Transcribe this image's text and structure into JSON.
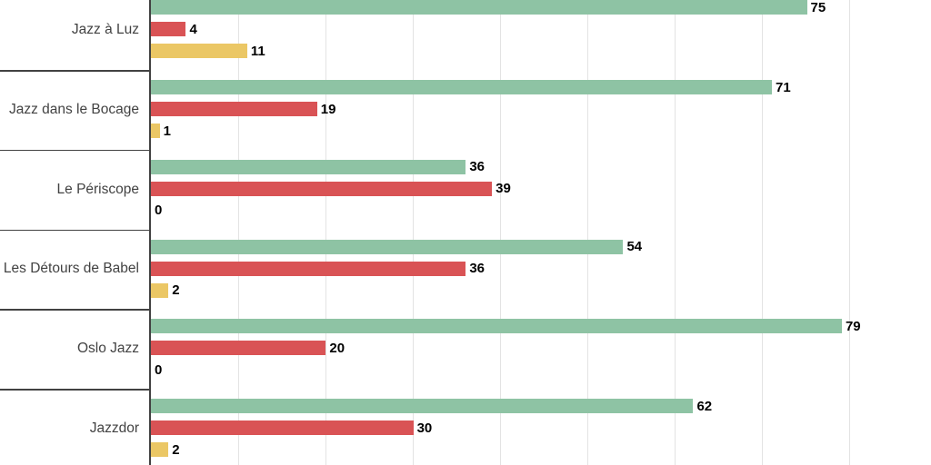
{
  "chart": {
    "background_color": "#ffffff",
    "axis_color": "#424242",
    "gridline_color": "#e3e3e3",
    "label_color": "#424242",
    "value_label_color": "#000000"
  },
  "chart_data": {
    "type": "bar",
    "orientation": "horizontal",
    "title": "",
    "xlabel": "",
    "ylabel": "",
    "grid": true,
    "gridline_interval": 10,
    "xlim_visible": [
      0,
      89
    ],
    "value_labels": true,
    "legend": "none (cropped out of view)",
    "categories": [
      "Jazz à Luz",
      "Jazz dans le Bocage",
      "Le Périscope",
      "Les Détours de Babel",
      "Oslo Jazz",
      "Jazzdor"
    ],
    "series": [
      {
        "name": "series-green",
        "color": "#8EC3A4",
        "values": [
          75,
          71,
          36,
          54,
          79,
          62
        ]
      },
      {
        "name": "series-red",
        "color": "#D95355",
        "values": [
          4,
          19,
          39,
          36,
          20,
          30
        ]
      },
      {
        "name": "series-yellow",
        "color": "#EBC765",
        "values": [
          11,
          1,
          0,
          2,
          0,
          2
        ]
      }
    ]
  }
}
